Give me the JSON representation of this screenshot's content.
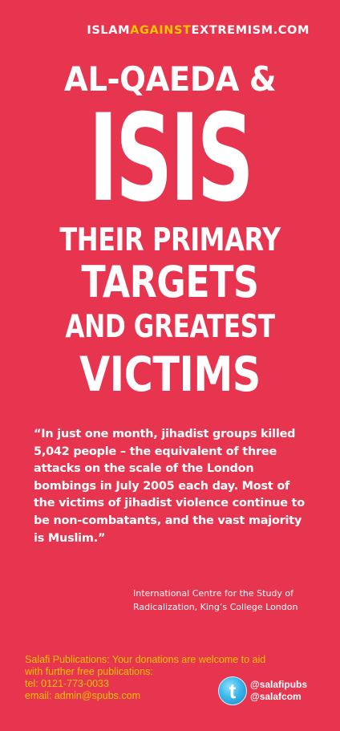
{
  "site": {
    "part1": "ISLAM",
    "part2": "AGAINST",
    "part3": "EXTREMISM.COM"
  },
  "colors": {
    "background": "#e8354f",
    "accent": "#f5c400",
    "text": "#ffffff"
  },
  "headline": {
    "line1": "AL-QAEDA &",
    "line2": "ISIS",
    "line3": "THEIR PRIMARY",
    "line4": "TARGETS",
    "line5": "AND GREATEST",
    "line6": "VICTIMS"
  },
  "quote": {
    "text": "“In just one month, jihadist groups killed 5,042 people – the equivalent of three attacks on the scale of the London bombings in July 2005 each day. Most of the victims of jihadist violence continue to be non-combatants, and the vast majority is Muslim.”",
    "source_line1": "International Centre for the Study of",
    "source_line2": "Radicalization, King’s College London"
  },
  "footer": {
    "publisher": "Salafi Publications",
    "message_line1": ": Your donations are welcome to aid",
    "message_line2": "with further free publications:",
    "tel": "tel: 0121-773-0033",
    "email": "email: admin@spubs.com"
  },
  "twitter": {
    "icon": "twitter-bird-icon",
    "glyph": "t",
    "handle1": "@salafipubs",
    "handle2": "@salafcom"
  }
}
